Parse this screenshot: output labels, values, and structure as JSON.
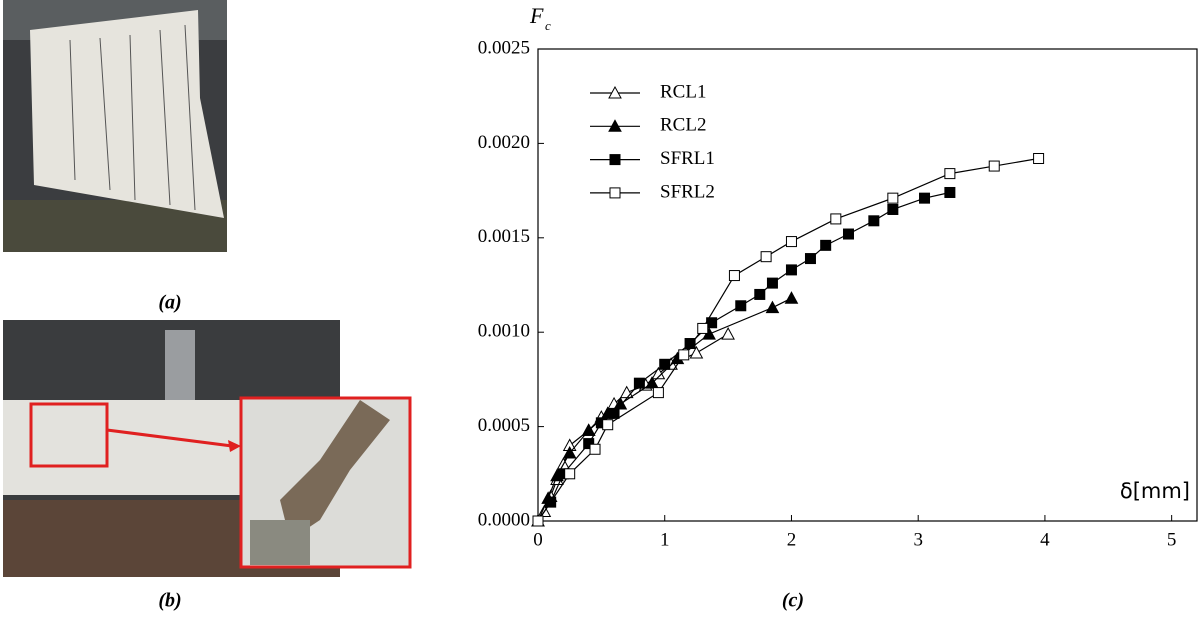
{
  "panels": {
    "a": {
      "caption": "(a)"
    },
    "b": {
      "caption": "(b)"
    }
  },
  "chart_data": {
    "type": "line",
    "caption": "(c)",
    "y_label": {
      "main": "F",
      "sub": "c"
    },
    "x_label": "δ[mm]",
    "xlim": [
      0,
      5.2
    ],
    "ylim": [
      0,
      0.0025
    ],
    "xticks": [
      0,
      1,
      2,
      3,
      4,
      5
    ],
    "yticks": [
      {
        "value": 0,
        "label": "0.0000"
      },
      {
        "value": 0.0005,
        "label": "0.0005"
      },
      {
        "value": 0.001,
        "label": "0.0010"
      },
      {
        "value": 0.0015,
        "label": "0.0015"
      },
      {
        "value": 0.002,
        "label": "0.0020"
      },
      {
        "value": 0.0025,
        "label": "0.0025"
      }
    ],
    "series": [
      {
        "name": "RCL1",
        "marker": "triangle",
        "filled": false,
        "color": "#000000",
        "x": [
          0,
          0.05,
          0.1,
          0.15,
          0.2,
          0.25,
          0.4,
          0.5,
          0.6,
          0.7,
          0.85,
          0.95,
          1.05,
          1.25,
          1.5
        ],
        "values": [
          0,
          5e-05,
          0.00013,
          0.00022,
          0.0003,
          0.0004,
          0.00048,
          0.00055,
          0.00062,
          0.00068,
          0.00072,
          0.00078,
          0.00083,
          0.00089,
          0.00099
        ]
      },
      {
        "name": "RCL2",
        "marker": "triangle",
        "filled": true,
        "color": "#000000",
        "x": [
          0,
          0.08,
          0.15,
          0.25,
          0.4,
          0.55,
          0.65,
          0.9,
          1.1,
          1.35,
          1.85,
          2.0
        ],
        "values": [
          0,
          0.00012,
          0.00024,
          0.00036,
          0.00048,
          0.00057,
          0.00062,
          0.00073,
          0.00086,
          0.00099,
          0.00113,
          0.00118
        ]
      },
      {
        "name": "SFRL1",
        "marker": "square",
        "filled": true,
        "color": "#000000",
        "x": [
          0,
          0.1,
          0.2,
          0.4,
          0.5,
          0.6,
          0.8,
          1.0,
          1.2,
          1.37,
          1.6,
          1.75,
          1.85,
          2.0,
          2.15,
          2.27,
          2.45,
          2.65,
          2.8,
          3.05,
          3.25
        ],
        "values": [
          0,
          0.0001,
          0.00025,
          0.00041,
          0.00052,
          0.00057,
          0.00073,
          0.00083,
          0.00094,
          0.00105,
          0.00114,
          0.0012,
          0.00126,
          0.00133,
          0.00139,
          0.00146,
          0.00152,
          0.00159,
          0.00165,
          0.00171,
          0.00174
        ]
      },
      {
        "name": "SFRL2",
        "marker": "square",
        "filled": false,
        "color": "#000000",
        "x": [
          0,
          0.25,
          0.45,
          0.55,
          0.95,
          1.15,
          1.3,
          1.55,
          1.8,
          2.0,
          2.35,
          2.8,
          3.25,
          3.6,
          3.95
        ],
        "values": [
          0,
          0.00025,
          0.00038,
          0.00051,
          0.00068,
          0.00088,
          0.00102,
          0.0013,
          0.0014,
          0.00148,
          0.0016,
          0.00171,
          0.00184,
          0.00188,
          0.00192
        ]
      }
    ]
  }
}
